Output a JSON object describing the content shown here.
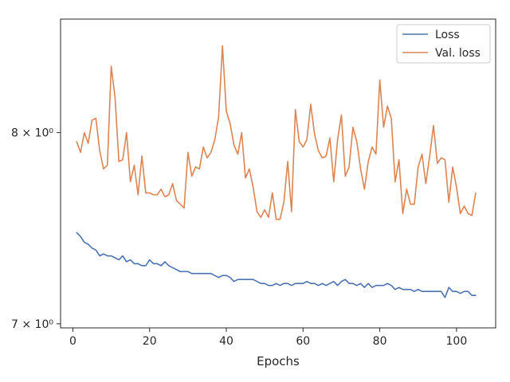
{
  "chart_data": {
    "type": "line",
    "title": "",
    "xlabel": "Epochs",
    "ylabel": "",
    "xlim": [
      -3.2,
      110.2
    ],
    "ylim": [
      6.98,
      8.66
    ],
    "yscale": "log",
    "grid": false,
    "legend_position": "top-right",
    "x_ticks": [
      0,
      20,
      40,
      60,
      80,
      100
    ],
    "x_tick_labels": [
      "0",
      "20",
      "40",
      "60",
      "80",
      "100"
    ],
    "y_ticks": [
      7,
      8
    ],
    "y_tick_labels": [
      "7 × 10⁰",
      "8 × 10⁰"
    ],
    "series": [
      {
        "name": "Loss",
        "color": "#4c72b0",
        "x": [
          1,
          2,
          3,
          4,
          5,
          6,
          7,
          8,
          9,
          10,
          11,
          12,
          13,
          14,
          15,
          16,
          17,
          18,
          19,
          20,
          21,
          22,
          23,
          24,
          25,
          26,
          27,
          28,
          29,
          30,
          31,
          32,
          33,
          34,
          35,
          36,
          37,
          38,
          39,
          40,
          41,
          42,
          43,
          44,
          45,
          46,
          47,
          48,
          49,
          50,
          51,
          52,
          53,
          54,
          55,
          56,
          57,
          58,
          59,
          60,
          61,
          62,
          63,
          64,
          65,
          66,
          67,
          68,
          69,
          70,
          71,
          72,
          73,
          74,
          75,
          76,
          77,
          78,
          79,
          80,
          81,
          82,
          83,
          84,
          85,
          86,
          87,
          88,
          89,
          90,
          91,
          92,
          93,
          94,
          95,
          96,
          97,
          98,
          99,
          100,
          101,
          102,
          103,
          104,
          105
        ],
        "values": [
          7.46,
          7.44,
          7.41,
          7.4,
          7.38,
          7.37,
          7.34,
          7.35,
          7.34,
          7.34,
          7.33,
          7.32,
          7.34,
          7.31,
          7.32,
          7.3,
          7.3,
          7.29,
          7.29,
          7.32,
          7.3,
          7.3,
          7.29,
          7.31,
          7.29,
          7.28,
          7.27,
          7.26,
          7.26,
          7.26,
          7.25,
          7.25,
          7.25,
          7.25,
          7.25,
          7.25,
          7.24,
          7.23,
          7.24,
          7.24,
          7.23,
          7.21,
          7.22,
          7.22,
          7.22,
          7.22,
          7.22,
          7.21,
          7.2,
          7.2,
          7.19,
          7.19,
          7.2,
          7.19,
          7.2,
          7.2,
          7.19,
          7.2,
          7.2,
          7.2,
          7.21,
          7.2,
          7.2,
          7.19,
          7.2,
          7.19,
          7.2,
          7.21,
          7.19,
          7.21,
          7.22,
          7.2,
          7.2,
          7.19,
          7.2,
          7.18,
          7.2,
          7.18,
          7.19,
          7.19,
          7.19,
          7.2,
          7.19,
          7.17,
          7.18,
          7.17,
          7.17,
          7.17,
          7.16,
          7.17,
          7.16,
          7.16,
          7.16,
          7.16,
          7.16,
          7.16,
          7.13,
          7.18,
          7.16,
          7.16,
          7.15,
          7.16,
          7.16,
          7.14,
          7.14
        ]
      },
      {
        "name": "Val. loss",
        "color": "#dd8452",
        "x": [
          1,
          2,
          3,
          4,
          5,
          6,
          7,
          8,
          9,
          10,
          11,
          12,
          13,
          14,
          15,
          16,
          17,
          18,
          19,
          20,
          21,
          22,
          23,
          24,
          25,
          26,
          27,
          28,
          29,
          30,
          31,
          32,
          33,
          34,
          35,
          36,
          37,
          38,
          39,
          40,
          41,
          42,
          43,
          44,
          45,
          46,
          47,
          48,
          49,
          50,
          51,
          52,
          53,
          54,
          55,
          56,
          57,
          58,
          59,
          60,
          61,
          62,
          63,
          64,
          65,
          66,
          67,
          68,
          69,
          70,
          71,
          72,
          73,
          74,
          75,
          76,
          77,
          78,
          79,
          80,
          81,
          82,
          83,
          84,
          85,
          86,
          87,
          88,
          89,
          90,
          91,
          92,
          93,
          94,
          95,
          96,
          97,
          98,
          99,
          100,
          101,
          102,
          103,
          104,
          105
        ],
        "values": [
          7.95,
          7.89,
          8.0,
          7.94,
          8.07,
          8.08,
          7.9,
          7.8,
          7.82,
          8.38,
          8.2,
          7.84,
          7.85,
          8.0,
          7.73,
          7.82,
          7.66,
          7.87,
          7.67,
          7.67,
          7.66,
          7.66,
          7.69,
          7.65,
          7.66,
          7.72,
          7.63,
          7.61,
          7.59,
          7.89,
          7.76,
          7.81,
          7.8,
          7.92,
          7.86,
          7.89,
          7.96,
          8.09,
          8.5,
          8.12,
          8.05,
          7.93,
          7.88,
          8.0,
          7.75,
          7.8,
          7.7,
          7.57,
          7.54,
          7.58,
          7.54,
          7.67,
          7.53,
          7.53,
          7.62,
          7.84,
          7.57,
          8.13,
          7.95,
          7.92,
          7.96,
          8.16,
          7.99,
          7.9,
          7.86,
          7.87,
          7.97,
          7.73,
          7.96,
          8.1,
          7.76,
          7.81,
          8.03,
          7.95,
          7.8,
          7.69,
          7.84,
          7.92,
          7.88,
          8.3,
          8.03,
          8.15,
          8.08,
          7.73,
          7.85,
          7.56,
          7.69,
          7.61,
          7.61,
          7.81,
          7.88,
          7.72,
          7.87,
          8.04,
          7.83,
          7.86,
          7.85,
          7.62,
          7.81,
          7.7,
          7.56,
          7.6,
          7.56,
          7.55,
          7.67
        ]
      }
    ]
  }
}
